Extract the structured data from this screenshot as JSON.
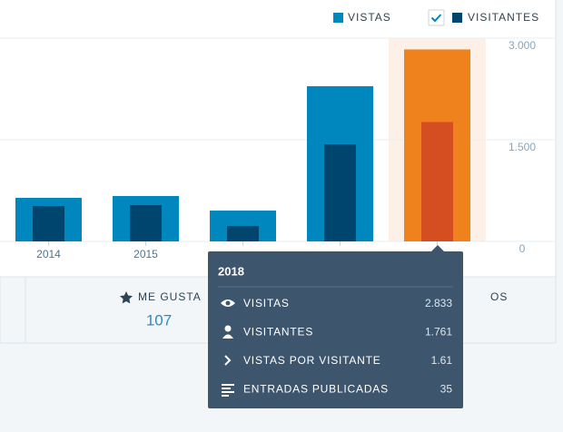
{
  "chart_data": {
    "type": "bar",
    "categories": [
      "2014",
      "2015",
      null,
      null,
      null
    ],
    "series": [
      {
        "name": "VISTAS",
        "color": "#0087be",
        "highlight_color": "#f0821e",
        "values": [
          643,
          670,
          455,
          2290,
          2833
        ]
      },
      {
        "name": "VISITANTES",
        "color": "#00456e",
        "highlight_color": "#d54e21",
        "values": [
          522,
          536,
          228,
          1433,
          1761
        ]
      }
    ],
    "highlight_index": 4,
    "ylim": [
      0,
      3000
    ],
    "yticks": [
      0,
      {
        "value": 1500,
        "label": "1.500"
      },
      {
        "value": 3000,
        "label": "3.000"
      }
    ],
    "grid": true
  },
  "stats": [
    {
      "label": "ME GUSTA",
      "value": "107"
    },
    {
      "label": "OS"
    }
  ],
  "tooltip": {
    "title": "2018",
    "rows": [
      {
        "label": "VISITAS",
        "value": "2.833"
      },
      {
        "label": "VISITANTES",
        "value": "1.761"
      },
      {
        "label": "VISTAS POR VISITANTE",
        "value": "1.61"
      },
      {
        "label": "ENTRADAS PUBLICADAS",
        "value": "35"
      }
    ]
  }
}
